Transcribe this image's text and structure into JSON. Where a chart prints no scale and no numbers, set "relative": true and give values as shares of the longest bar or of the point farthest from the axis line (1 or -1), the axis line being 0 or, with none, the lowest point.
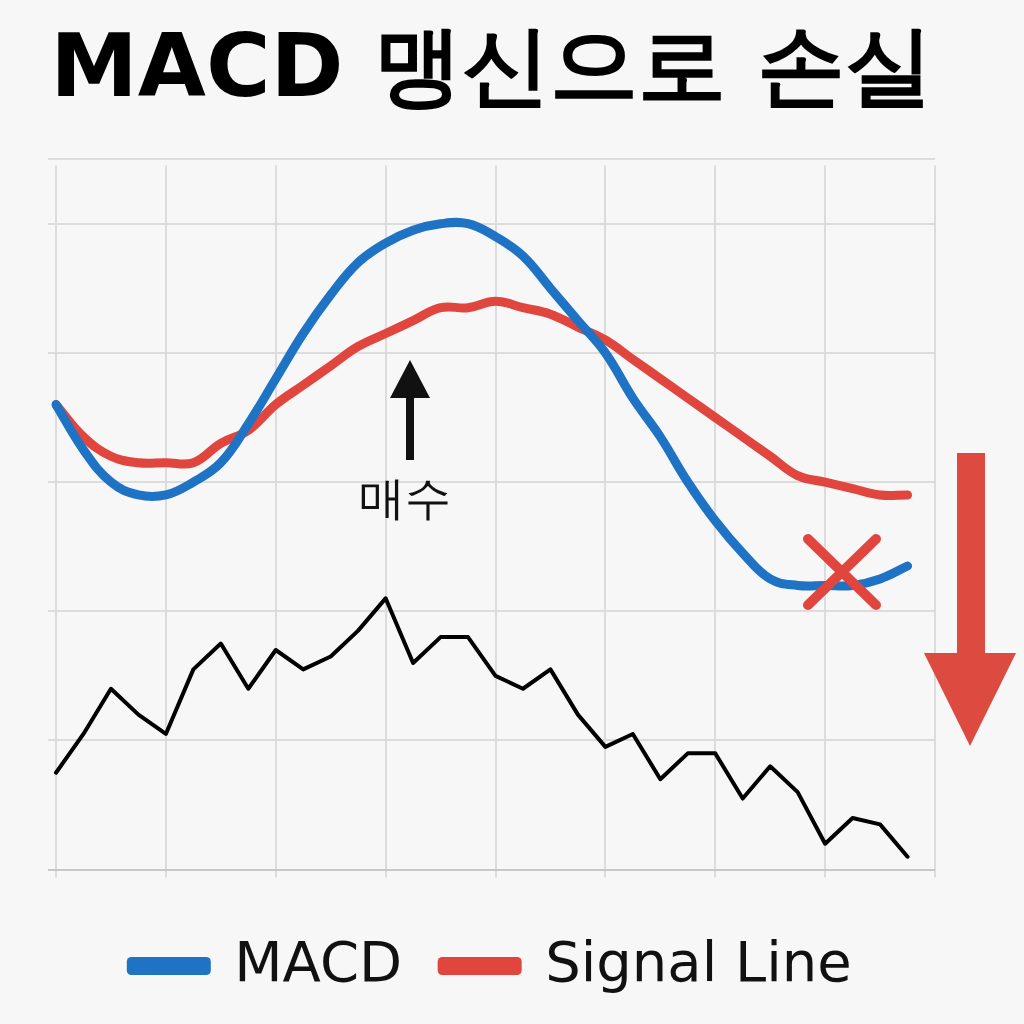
{
  "chart_data": {
    "type": "line",
    "title": "MACD 맹신으로 손실",
    "relative": true,
    "grid": true,
    "legend": "bottom",
    "categories": [
      null,
      null,
      null,
      null,
      null,
      null,
      null,
      null,
      null,
      null,
      null,
      null,
      null,
      null,
      null,
      null,
      null,
      null,
      null,
      null,
      null,
      null,
      null,
      null,
      null,
      null,
      null,
      null,
      null,
      null,
      null,
      null,
      null
    ],
    "series": [
      {
        "name": "MACD",
        "color": "#1f73c4",
        "values": [
          0.72,
          0.65,
          0.6,
          0.58,
          0.58,
          0.6,
          0.63,
          0.69,
          0.76,
          0.83,
          0.89,
          0.94,
          0.97,
          0.99,
          1.0,
          1.0,
          0.98,
          0.95,
          0.9,
          0.85,
          0.8,
          0.73,
          0.67,
          0.6,
          0.54,
          0.49,
          0.45,
          0.44,
          0.44,
          0.44,
          0.45,
          0.47,
          null
        ]
      },
      {
        "name": "Signal Line",
        "color": "#e0463e",
        "values": [
          0.72,
          0.67,
          0.64,
          0.63,
          0.63,
          0.63,
          0.66,
          0.68,
          0.72,
          0.75,
          0.78,
          0.81,
          0.83,
          0.85,
          0.87,
          0.87,
          0.88,
          0.87,
          0.86,
          0.84,
          0.82,
          0.79,
          0.76,
          0.73,
          0.7,
          0.67,
          0.64,
          0.61,
          0.6,
          0.59,
          0.58,
          0.58,
          null
        ]
      },
      {
        "color": "#000000",
        "values": [
          0.15,
          0.21,
          0.28,
          0.24,
          0.21,
          0.31,
          0.35,
          0.28,
          0.34,
          0.31,
          0.33,
          0.37,
          0.42,
          0.32,
          0.36,
          0.36,
          0.3,
          0.28,
          0.31,
          0.24,
          0.19,
          0.21,
          0.14,
          0.18,
          0.18,
          0.11,
          0.16,
          0.12,
          0.04,
          0.08,
          0.07,
          0.02,
          null
        ]
      }
    ],
    "annotations": [
      "매수"
    ]
  }
}
